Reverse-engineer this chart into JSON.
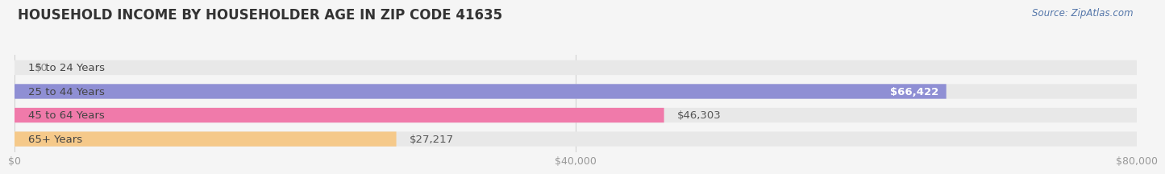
{
  "title": "HOUSEHOLD INCOME BY HOUSEHOLDER AGE IN ZIP CODE 41635",
  "source": "Source: ZipAtlas.com",
  "categories": [
    "15 to 24 Years",
    "25 to 44 Years",
    "45 to 64 Years",
    "65+ Years"
  ],
  "values": [
    0,
    66422,
    46303,
    27217
  ],
  "bar_colors": [
    "#5ecfcf",
    "#8f8fd4",
    "#f07aaa",
    "#f5c98a"
  ],
  "value_labels": [
    "$0",
    "$66,422",
    "$46,303",
    "$27,217"
  ],
  "value_label_inside": [
    false,
    true,
    false,
    false
  ],
  "value_label_colors_inside": [
    "#888888",
    "#ffffff",
    "#555555",
    "#666666"
  ],
  "xlim_max": 80000,
  "xticks": [
    0,
    40000,
    80000
  ],
  "xtick_labels": [
    "$0",
    "$40,000",
    "$80,000"
  ],
  "background_color": "#f5f5f5",
  "bar_bg_color": "#e8e8e8",
  "title_fontsize": 12,
  "source_fontsize": 8.5,
  "cat_label_fontsize": 9.5,
  "value_fontsize": 9.5,
  "tick_fontsize": 9
}
